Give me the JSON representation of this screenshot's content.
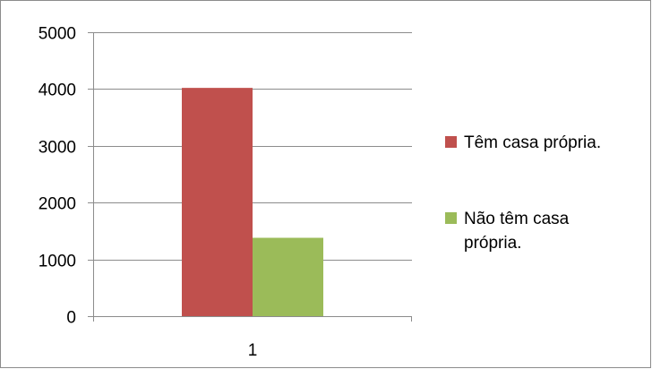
{
  "chart_data": {
    "type": "bar",
    "categories": [
      "1"
    ],
    "series": [
      {
        "name": "Têm casa própria.",
        "values": [
          4020
        ],
        "color": "#c0504d"
      },
      {
        "name": "Não têm casa própria.",
        "values": [
          1380
        ],
        "color": "#9bbb59"
      }
    ],
    "ylim": [
      0,
      5000
    ],
    "yticks": [
      0,
      1000,
      2000,
      3000,
      4000,
      5000
    ],
    "xlabel": "",
    "ylabel": "",
    "grid": "horizontal",
    "legend_position": "right"
  },
  "legend": [
    {
      "lines": [
        "Têm casa própria."
      ]
    },
    {
      "lines": [
        "Não têm casa",
        "própria."
      ]
    }
  ]
}
